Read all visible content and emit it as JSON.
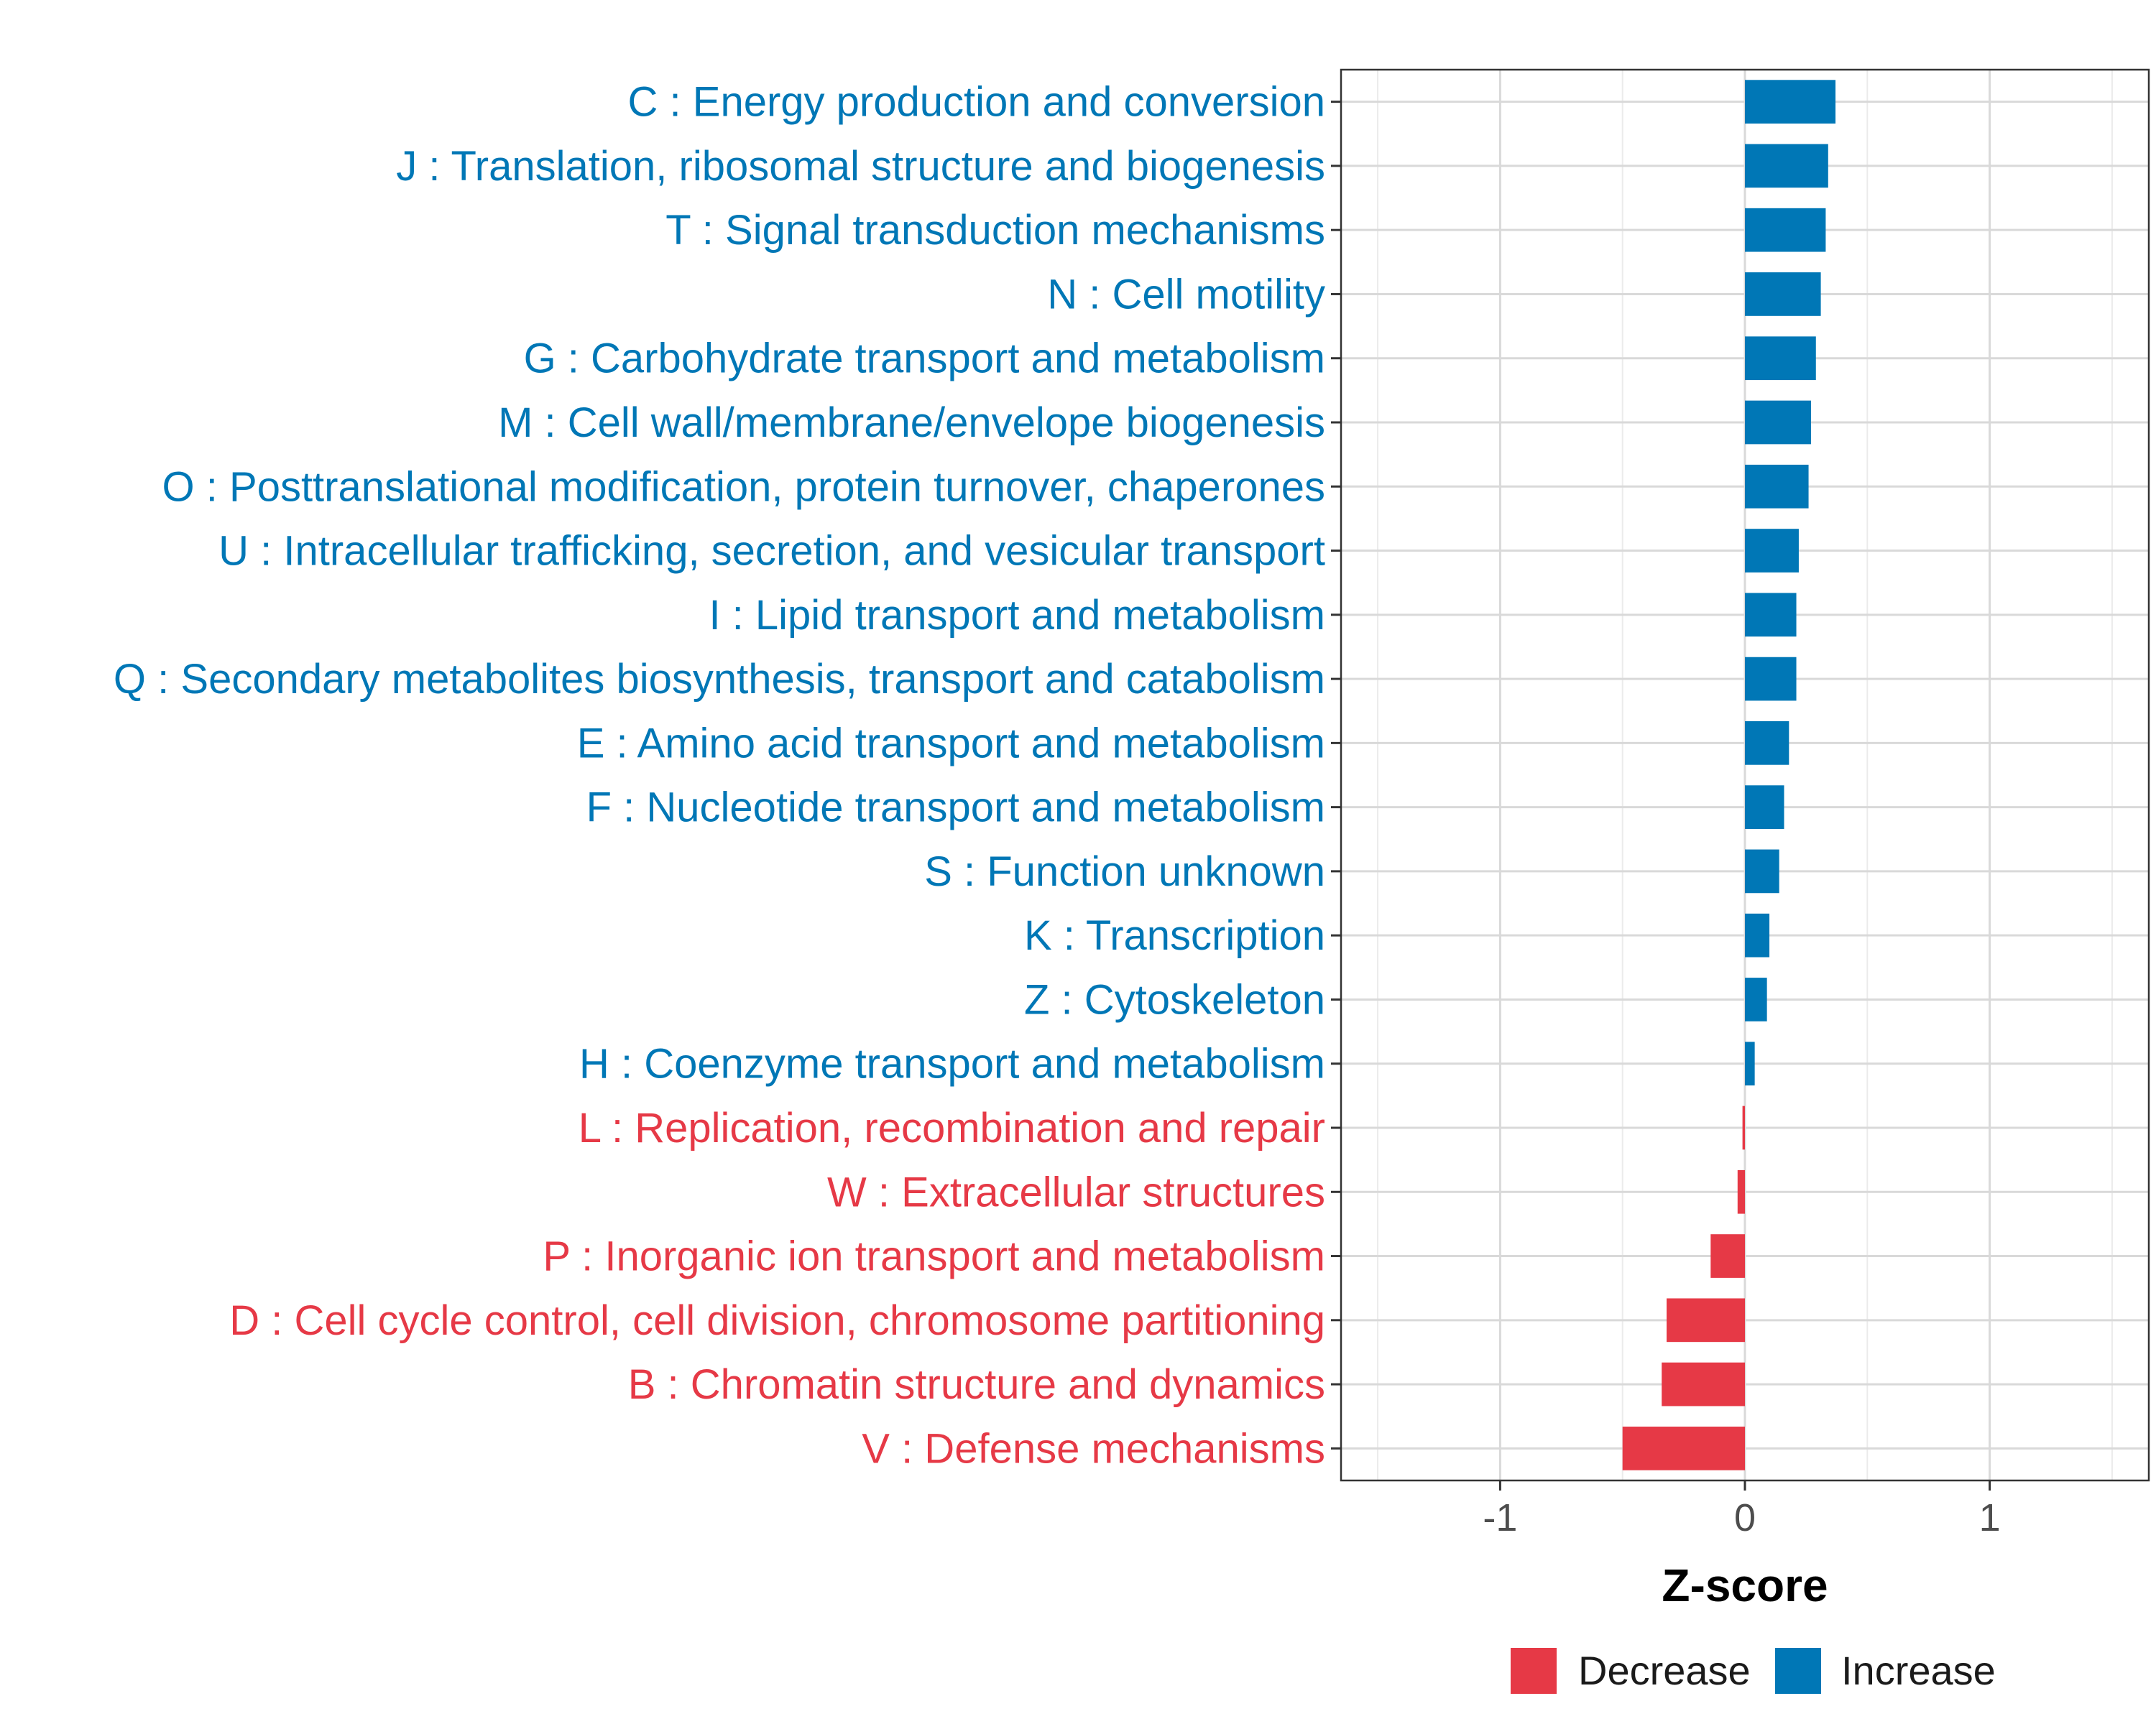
{
  "chart_data": {
    "type": "bar",
    "orientation": "horizontal",
    "title": "",
    "xlabel": "Z-score",
    "ylabel": "",
    "xlim": [
      -1.65,
      1.65
    ],
    "xticks": [
      -1,
      0,
      1
    ],
    "xtick_labels": [
      "-1",
      "0",
      "1"
    ],
    "grid": true,
    "legend_position": "bottom",
    "colors": {
      "Decrease": "#E63946",
      "Increase": "#0077B6"
    },
    "categories": [
      "C : Energy production and conversion",
      "J : Translation, ribosomal structure and biogenesis",
      "T : Signal transduction mechanisms",
      "N : Cell motility",
      "G : Carbohydrate transport and metabolism",
      "M : Cell wall/membrane/envelope biogenesis",
      "O : Posttranslational modification, protein turnover, chaperones",
      "U : Intracellular trafficking, secretion, and vesicular transport",
      "I : Lipid transport and metabolism",
      "Q : Secondary metabolites biosynthesis, transport and catabolism",
      "E : Amino acid transport and metabolism",
      "F : Nucleotide transport and metabolism",
      "S : Function unknown",
      "K : Transcription",
      "Z : Cytoskeleton",
      "H : Coenzyme transport and metabolism",
      "L : Replication, recombination and repair",
      "W : Extracellular structures",
      "P : Inorganic ion transport and metabolism",
      "D : Cell cycle control, cell division, chromosome partitioning",
      "B : Chromatin structure and dynamics",
      "V : Defense mechanisms"
    ],
    "values": [
      0.37,
      0.34,
      0.33,
      0.31,
      0.29,
      0.27,
      0.26,
      0.22,
      0.21,
      0.21,
      0.18,
      0.16,
      0.14,
      0.1,
      0.09,
      0.04,
      -0.01,
      -0.03,
      -0.14,
      -0.32,
      -0.34,
      -0.5
    ],
    "groups": [
      "Increase",
      "Increase",
      "Increase",
      "Increase",
      "Increase",
      "Increase",
      "Increase",
      "Increase",
      "Increase",
      "Increase",
      "Increase",
      "Increase",
      "Increase",
      "Increase",
      "Increase",
      "Increase",
      "Decrease",
      "Decrease",
      "Decrease",
      "Decrease",
      "Decrease",
      "Decrease"
    ],
    "legend": [
      {
        "name": "Decrease",
        "color": "#E63946"
      },
      {
        "name": "Increase",
        "color": "#0077B6"
      }
    ]
  }
}
